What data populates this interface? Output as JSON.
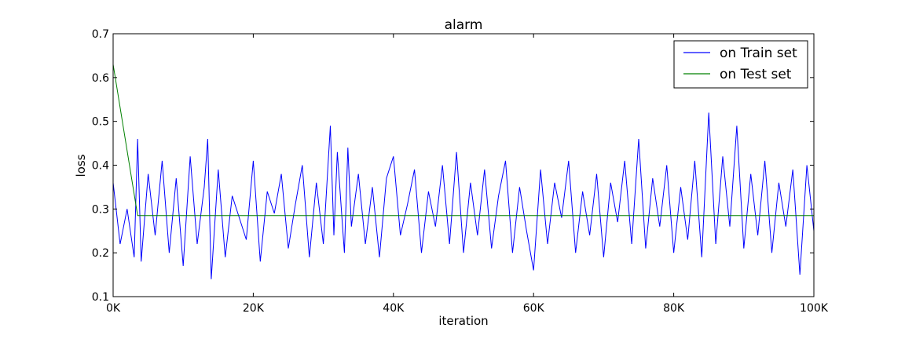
{
  "chart_data": {
    "type": "line",
    "title": "alarm",
    "xlabel": "iteration",
    "ylabel": "loss",
    "xlim": [
      0,
      100000
    ],
    "ylim": [
      0.1,
      0.7
    ],
    "x_ticks": [
      0,
      20000,
      40000,
      60000,
      80000,
      100000
    ],
    "x_tick_labels": [
      "0K",
      "20K",
      "40K",
      "60K",
      "80K",
      "100K"
    ],
    "y_ticks": [
      0.1,
      0.2,
      0.3,
      0.4,
      0.5,
      0.6,
      0.7
    ],
    "y_tick_labels": [
      "0.1",
      "0.2",
      "0.3",
      "0.4",
      "0.5",
      "0.6",
      "0.7"
    ],
    "grid": false,
    "legend_position": "top-right",
    "series": [
      {
        "name": "on Train set",
        "color": "#0000ff",
        "x": [
          0,
          1000,
          2000,
          3000,
          3500,
          4000,
          5000,
          6000,
          7000,
          8000,
          9000,
          10000,
          11000,
          12000,
          13000,
          13500,
          14000,
          15000,
          16000,
          17000,
          18000,
          19000,
          20000,
          21000,
          22000,
          23000,
          24000,
          25000,
          26000,
          27000,
          28000,
          29000,
          30000,
          31000,
          31500,
          32000,
          33000,
          33500,
          34000,
          35000,
          36000,
          37000,
          38000,
          39000,
          40000,
          41000,
          42000,
          43000,
          44000,
          45000,
          46000,
          47000,
          48000,
          49000,
          50000,
          51000,
          52000,
          53000,
          54000,
          55000,
          56000,
          57000,
          58000,
          59000,
          60000,
          61000,
          62000,
          63000,
          64000,
          65000,
          66000,
          67000,
          68000,
          69000,
          70000,
          71000,
          72000,
          73000,
          74000,
          75000,
          76000,
          77000,
          78000,
          79000,
          80000,
          81000,
          82000,
          83000,
          84000,
          85000,
          86000,
          87000,
          88000,
          89000,
          90000,
          91000,
          92000,
          93000,
          94000,
          95000,
          96000,
          97000,
          98000,
          99000,
          100000
        ],
        "y": [
          0.36,
          0.22,
          0.3,
          0.19,
          0.46,
          0.18,
          0.38,
          0.24,
          0.41,
          0.2,
          0.37,
          0.17,
          0.42,
          0.22,
          0.35,
          0.46,
          0.14,
          0.39,
          0.19,
          0.33,
          0.28,
          0.23,
          0.41,
          0.18,
          0.34,
          0.29,
          0.38,
          0.21,
          0.31,
          0.4,
          0.19,
          0.36,
          0.22,
          0.49,
          0.24,
          0.43,
          0.2,
          0.44,
          0.26,
          0.38,
          0.22,
          0.35,
          0.19,
          0.37,
          0.42,
          0.24,
          0.31,
          0.39,
          0.2,
          0.34,
          0.26,
          0.4,
          0.22,
          0.43,
          0.2,
          0.36,
          0.24,
          0.39,
          0.21,
          0.33,
          0.41,
          0.2,
          0.35,
          0.25,
          0.16,
          0.39,
          0.22,
          0.36,
          0.28,
          0.41,
          0.2,
          0.34,
          0.24,
          0.38,
          0.19,
          0.36,
          0.27,
          0.41,
          0.22,
          0.46,
          0.21,
          0.37,
          0.26,
          0.4,
          0.2,
          0.35,
          0.23,
          0.41,
          0.19,
          0.52,
          0.22,
          0.42,
          0.26,
          0.49,
          0.21,
          0.38,
          0.24,
          0.41,
          0.2,
          0.36,
          0.26,
          0.39,
          0.15,
          0.4,
          0.25
        ]
      },
      {
        "name": "on Test set",
        "color": "#008000",
        "x": [
          0,
          3500,
          100000
        ],
        "y": [
          0.63,
          0.285,
          0.285
        ]
      }
    ]
  }
}
